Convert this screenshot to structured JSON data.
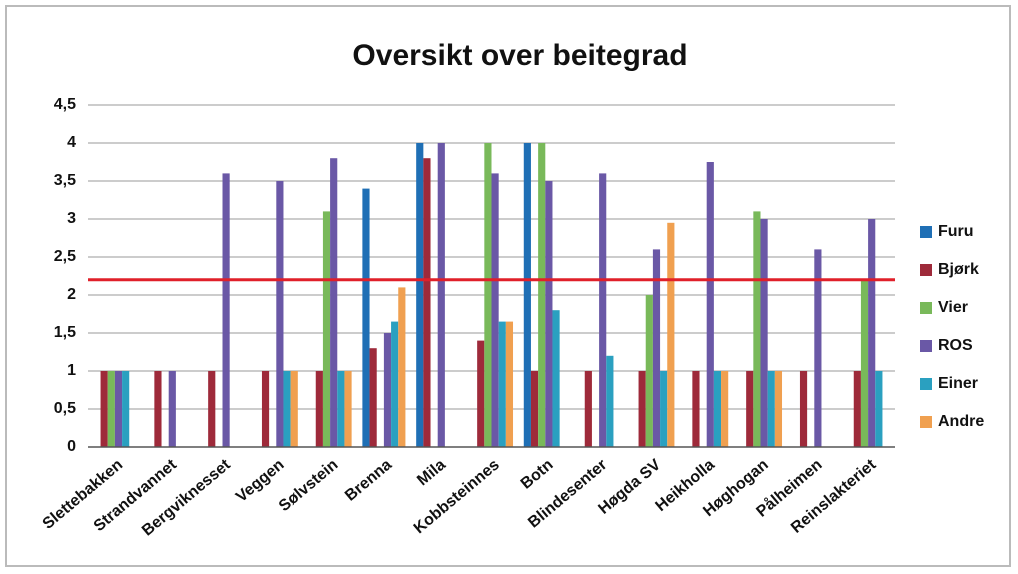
{
  "chart_data": {
    "type": "bar",
    "title": "Oversikt over beitegrad",
    "categories": [
      "Slettebakken",
      "Strandvannet",
      "Bergviknesset",
      "Veggen",
      "Sølvstein",
      "Brenna",
      "Mila",
      "Kobbsteinnes",
      "Botn",
      "Blindesenter",
      "Høgda SV",
      "Heikholla",
      "Høghogan",
      "Pålheimen",
      "Reinslakteriet"
    ],
    "series": [
      {
        "name": "Furu",
        "color": "#1f6fb5",
        "values": [
          null,
          null,
          null,
          null,
          null,
          3.4,
          4,
          null,
          4,
          null,
          null,
          null,
          null,
          null,
          null
        ]
      },
      {
        "name": "Bjørk",
        "color": "#9e2a3a",
        "values": [
          1,
          1,
          1,
          1,
          1,
          1.3,
          3.8,
          1.4,
          1,
          1,
          1,
          1,
          1,
          1,
          1
        ]
      },
      {
        "name": "Vier",
        "color": "#79b95a",
        "values": [
          1,
          null,
          null,
          null,
          3.1,
          null,
          null,
          4,
          4,
          null,
          2,
          null,
          3.1,
          null,
          2.2
        ]
      },
      {
        "name": "ROS",
        "color": "#6a58a6",
        "values": [
          1,
          1,
          3.6,
          3.5,
          3.8,
          1.5,
          4,
          3.6,
          3.5,
          3.6,
          2.6,
          3.75,
          3,
          2.6,
          3
        ]
      },
      {
        "name": "Einer",
        "color": "#2aa0c0",
        "values": [
          1,
          null,
          null,
          1,
          1,
          1.65,
          null,
          1.65,
          1.8,
          1.2,
          1,
          1,
          1,
          null,
          1
        ]
      },
      {
        "name": "Andre",
        "color": "#f0a050",
        "values": [
          null,
          null,
          null,
          1,
          1,
          2.1,
          null,
          1.65,
          null,
          null,
          2.95,
          1,
          1,
          null,
          null
        ]
      }
    ],
    "ylim": [
      0,
      4.5
    ],
    "yticks": [
      0,
      {
        "value": 0.5,
        "label": "0,5"
      },
      1,
      {
        "value": 1.5,
        "label": "1,5"
      },
      2,
      {
        "value": 2.5,
        "label": "2,5"
      },
      3,
      {
        "value": 3.5,
        "label": "3,5"
      },
      4,
      {
        "value": 4.5,
        "label": "4,5"
      }
    ],
    "grid": true,
    "reference_line": {
      "value": 2.2,
      "color": "#e0202a"
    },
    "legend": "right"
  }
}
